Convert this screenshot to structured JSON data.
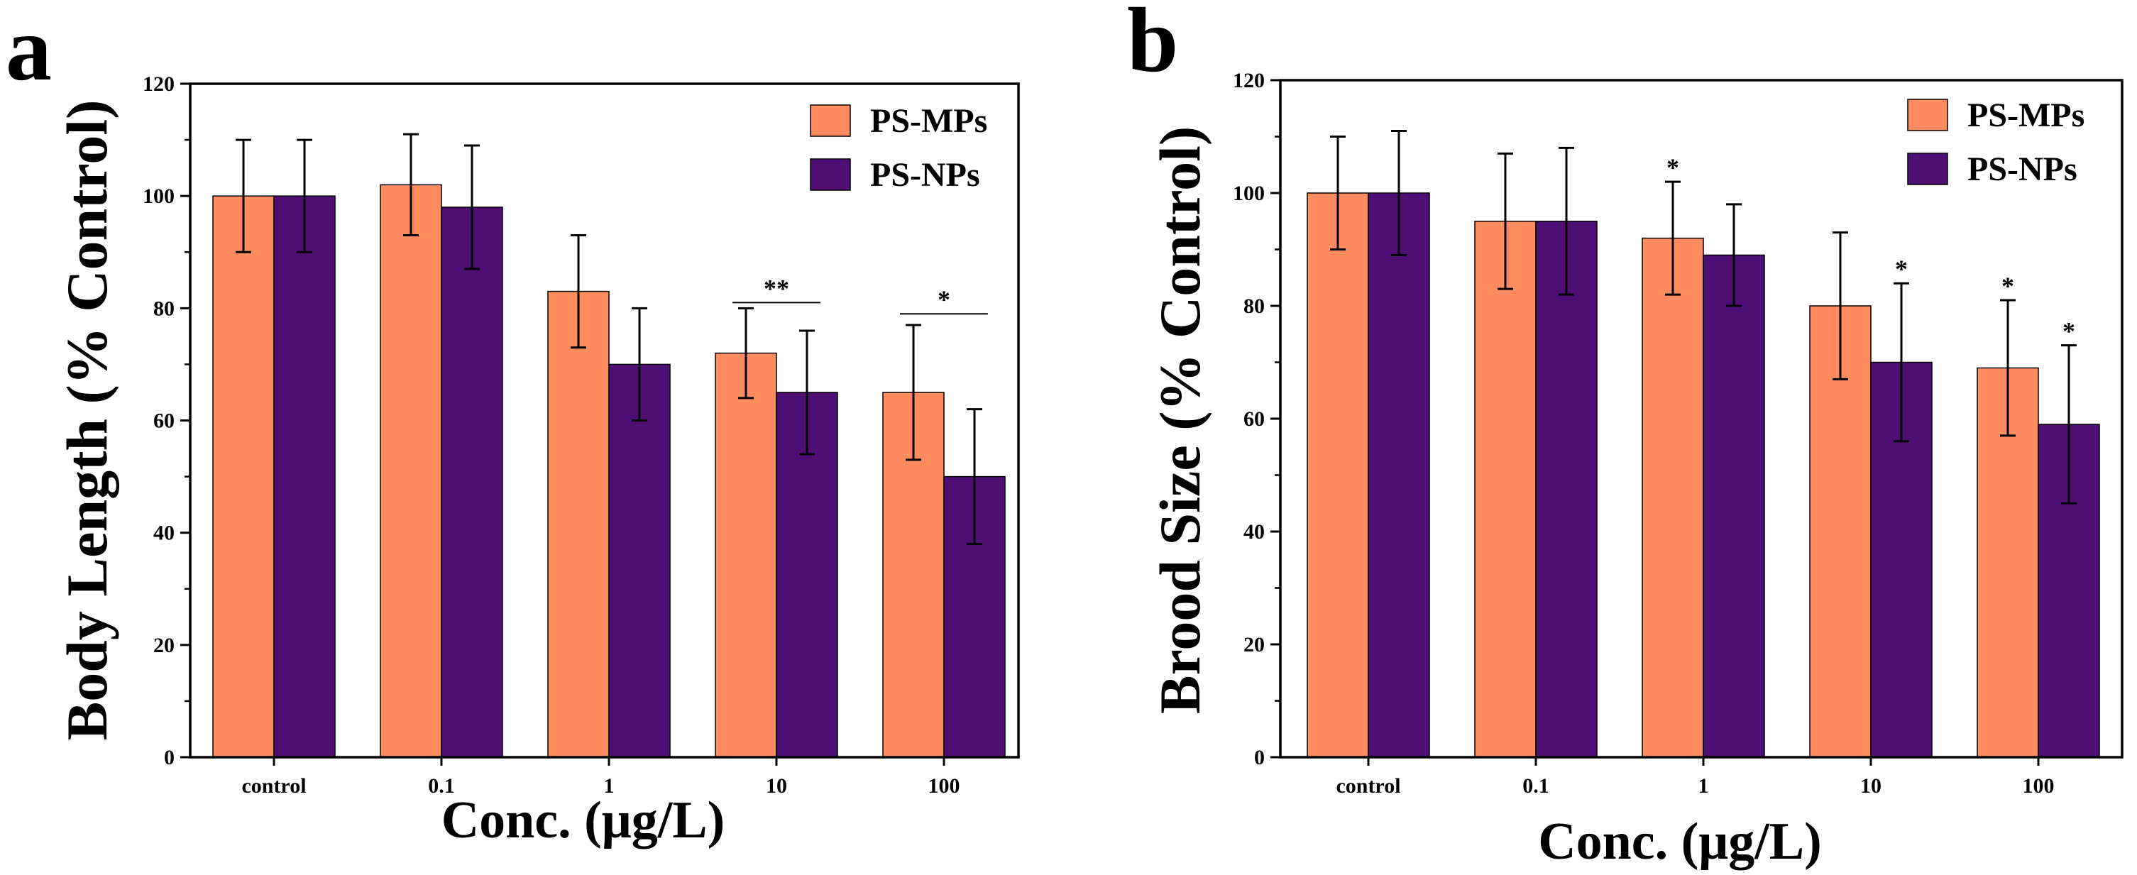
{
  "colors": {
    "ps_mps": "#FF8C5E",
    "ps_nps": "#4E0F75",
    "axis": "#000000"
  },
  "chart_data": [
    {
      "panel": "a",
      "type": "bar",
      "title": "",
      "xlabel": "Conc. (μg/L)",
      "ylabel": "Body Length (% Control)",
      "categories": [
        "control",
        "0.1",
        "1",
        "10",
        "100"
      ],
      "ylim": [
        0,
        120
      ],
      "yticks": [
        0,
        20,
        40,
        60,
        80,
        100,
        120
      ],
      "legend": "top-right",
      "series": [
        {
          "name": "PS-MPs",
          "values": [
            100,
            102,
            83,
            72,
            65
          ],
          "errors": [
            10,
            9,
            10,
            8,
            12
          ]
        },
        {
          "name": "PS-NPs",
          "values": [
            100,
            98,
            70,
            65,
            50
          ],
          "errors": [
            10,
            11,
            10,
            11,
            12
          ]
        }
      ],
      "significance": [
        {
          "category": 3,
          "label": "**",
          "bracket": true,
          "y": 81
        },
        {
          "category": 4,
          "label": "*",
          "bracket": true,
          "y": 79
        }
      ]
    },
    {
      "panel": "b",
      "type": "bar",
      "title": "",
      "xlabel": "Conc. (μg/L)",
      "ylabel": "Brood Size (% Control)",
      "categories": [
        "control",
        "0.1",
        "1",
        "10",
        "100"
      ],
      "ylim": [
        0,
        120
      ],
      "yticks": [
        0,
        20,
        40,
        60,
        80,
        100,
        120
      ],
      "legend": "top-right",
      "series": [
        {
          "name": "PS-MPs",
          "values": [
            100,
            95,
            92,
            80,
            69
          ],
          "errors": [
            10,
            12,
            10,
            13,
            12
          ]
        },
        {
          "name": "PS-NPs",
          "values": [
            100,
            95,
            89,
            70,
            59
          ],
          "errors": [
            11,
            13,
            9,
            14,
            14
          ]
        }
      ],
      "significance": [
        {
          "category": 2,
          "series": 0,
          "label": "*",
          "bracket": false
        },
        {
          "category": 3,
          "series": 1,
          "label": "*",
          "bracket": false
        },
        {
          "category": 4,
          "series": 0,
          "label": "*",
          "bracket": false
        },
        {
          "category": 4,
          "series": 1,
          "label": "*",
          "bracket": false
        }
      ]
    }
  ]
}
